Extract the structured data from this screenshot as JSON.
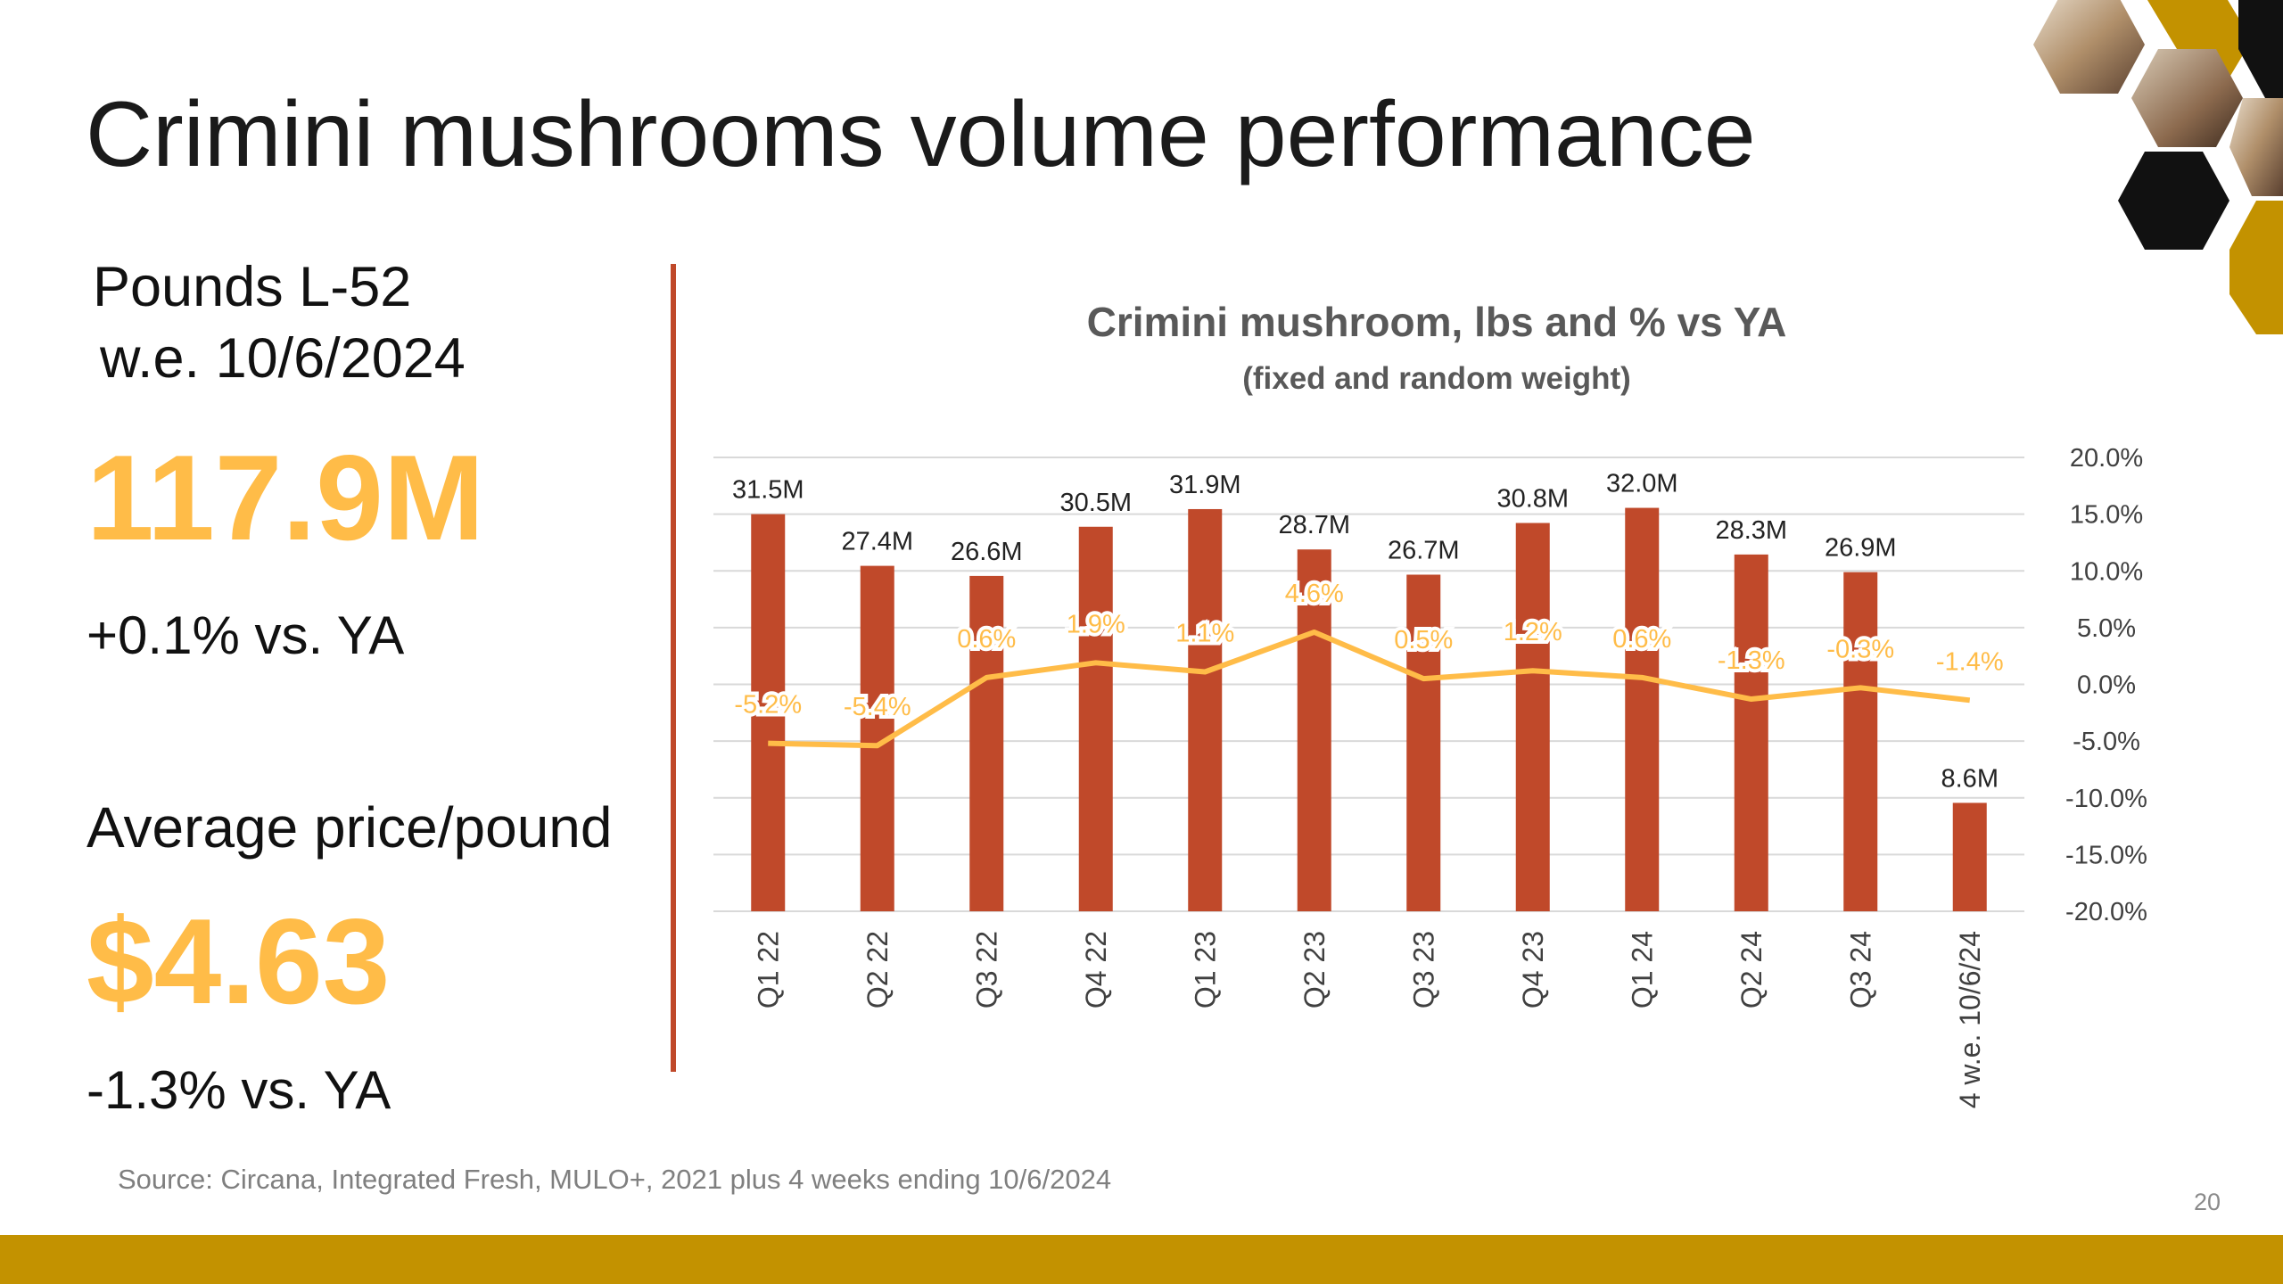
{
  "slide": {
    "title": "Crimini mushrooms volume performance",
    "pounds_label_line1": "Pounds L-52",
    "pounds_label_line2": "w.e. 10/6/2024",
    "pounds_value": "117.9M",
    "pounds_change": "+0.1% vs. YA",
    "price_label": "Average price/pound",
    "price_value": "$4.63",
    "price_change": "-1.3% vs. YA",
    "source": "Source: Circana, Integrated Fresh, MULO+, 2021 plus 4 weeks ending 10/6/2024",
    "page_number": "20"
  },
  "colors": {
    "accent_orange": "#FFBC48",
    "bar_color": "#C0492A",
    "divider_color": "#C0492A",
    "footer_bar": "#C39200"
  },
  "decor": {
    "top_right": "hexagon-photo-collage-icon"
  },
  "chart_data": {
    "type": "bar",
    "title": "Crimini mushroom, lbs and % vs YA",
    "subtitle": "(fixed and random weight)",
    "categories": [
      "Q1 22",
      "Q2 22",
      "Q3 22",
      "Q4 22",
      "Q1 23",
      "Q2 23",
      "Q3 23",
      "Q4 23",
      "Q1 24",
      "Q2 24",
      "Q3 24",
      "4 w.e. 10/6/24"
    ],
    "series": [
      {
        "type": "bar",
        "axis": "left",
        "values": [
          31.5,
          27.4,
          26.6,
          30.5,
          31.9,
          28.7,
          26.7,
          30.8,
          32.0,
          28.3,
          26.9,
          8.6
        ],
        "labels": [
          "31.5M",
          "27.4M",
          "26.6M",
          "30.5M",
          "31.9M",
          "28.7M",
          "26.7M",
          "30.8M",
          "32.0M",
          "28.3M",
          "26.9M",
          "8.6M"
        ]
      },
      {
        "type": "line",
        "axis": "right",
        "values": [
          -5.2,
          -5.4,
          0.6,
          1.9,
          1.1,
          4.6,
          0.5,
          1.2,
          0.6,
          -1.3,
          -0.3,
          -1.4
        ],
        "labels": [
          "-5.2%",
          "-5.4%",
          "0.6%",
          "1.9%",
          "1.1%",
          "4.6%",
          "0.5%",
          "1.2%",
          "0.6%",
          "-1.3%",
          "-0.3%",
          "-1.4%"
        ]
      }
    ],
    "left_axis": {
      "range": [
        0,
        36
      ]
    },
    "right_axis": {
      "range": [
        -20,
        20
      ],
      "ticks": [
        20,
        15,
        10,
        5,
        0,
        -5,
        -10,
        -15,
        -20
      ],
      "tick_labels": [
        "20.0%",
        "15.0%",
        "10.0%",
        "5.0%",
        "0.0%",
        "-5.0%",
        "-10.0%",
        "-15.0%",
        "-20.0%"
      ]
    },
    "grid": true,
    "legend": "none"
  }
}
